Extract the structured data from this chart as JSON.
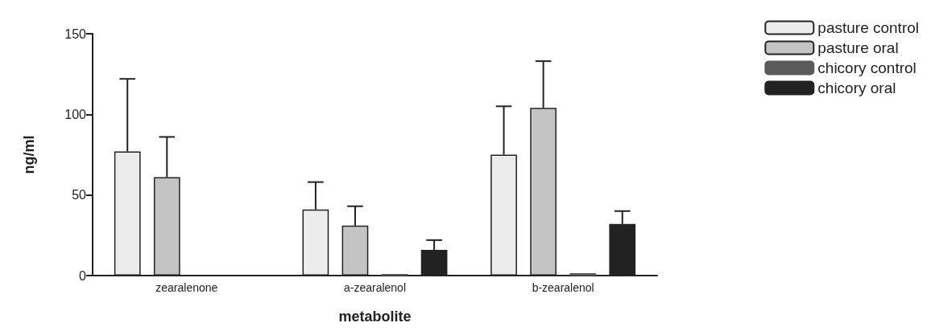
{
  "chart_data": {
    "type": "bar",
    "xlabel": "metabolite",
    "ylabel": "ng/ml",
    "categories": [
      "zearalenone",
      "a-zearalenol",
      "b-zearalenol"
    ],
    "series": [
      {
        "name": "pasture control",
        "color": "#ececec",
        "values": [
          77,
          41,
          75
        ],
        "errors": [
          [
            77,
            122
          ],
          [
            41,
            58
          ],
          [
            75,
            105
          ]
        ]
      },
      {
        "name": "pasture oral",
        "color": "#c4c4c4",
        "values": [
          61,
          31,
          104
        ],
        "errors": [
          [
            61,
            86
          ],
          [
            31,
            43
          ],
          [
            104,
            133
          ]
        ]
      },
      {
        "name": "chicory control",
        "color": "#5a5a5a",
        "values": [
          null,
          1,
          1.5
        ],
        "errors": [
          null,
          null,
          null
        ]
      },
      {
        "name": "chicory oral",
        "color": "#222222",
        "values": [
          null,
          16,
          32
        ],
        "errors": [
          null,
          [
            16,
            22
          ],
          [
            32,
            40
          ]
        ]
      }
    ],
    "ylim": [
      0,
      150
    ],
    "yticks": [
      0,
      50,
      100,
      150
    ],
    "grid": false,
    "legend": "top right"
  }
}
